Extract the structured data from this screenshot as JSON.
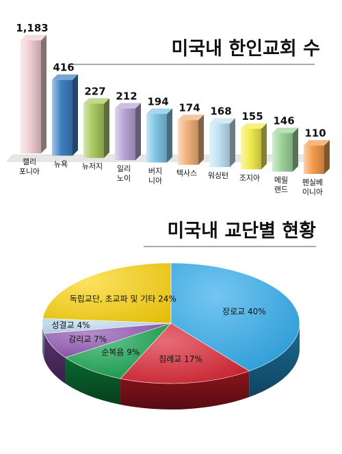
{
  "chart_data": [
    {
      "type": "bar",
      "title": "미국내 한인교회 수",
      "categories": [
        [
          "캘리",
          "포니아"
        ],
        [
          "뉴욕"
        ],
        [
          "뉴저지"
        ],
        [
          "일리",
          "노이"
        ],
        [
          "버지",
          "니아"
        ],
        [
          "텍사스"
        ],
        [
          "워싱턴"
        ],
        [
          "조지아"
        ],
        [
          "메릴",
          "랜드"
        ],
        [
          "펜실베",
          "이니아"
        ]
      ],
      "values": [
        1183,
        416,
        227,
        212,
        194,
        174,
        168,
        155,
        146,
        110
      ],
      "value_labels": [
        "1,183",
        "416",
        "227",
        "212",
        "194",
        "174",
        "168",
        "155",
        "146",
        "110"
      ],
      "colors": [
        "#f0cdd2",
        "#3d7fc2",
        "#a8c860",
        "#b7a4d4",
        "#7fc4e4",
        "#f2b07a",
        "#bfe3f4",
        "#f1ec4e",
        "#9cd39a",
        "#f29a4c"
      ]
    },
    {
      "type": "pie",
      "title": "미국내 교단별 현황",
      "slices": [
        {
          "label": "장로교 40%",
          "value": 40,
          "color": "#29a8ea"
        },
        {
          "label": "침례교 17%",
          "value": 17,
          "color": "#d81e2c"
        },
        {
          "label": "순복음 9%",
          "value": 9,
          "color": "#0fa04a"
        },
        {
          "label": "감리교 7%",
          "value": 7,
          "color": "#8a4fae"
        },
        {
          "label": "성결교 4%",
          "value": 4,
          "color": "#bcd9ef"
        },
        {
          "label": "독립교단, 초교파 및 기타 24%",
          "value": 24,
          "color": "#fbd20a"
        }
      ]
    }
  ]
}
